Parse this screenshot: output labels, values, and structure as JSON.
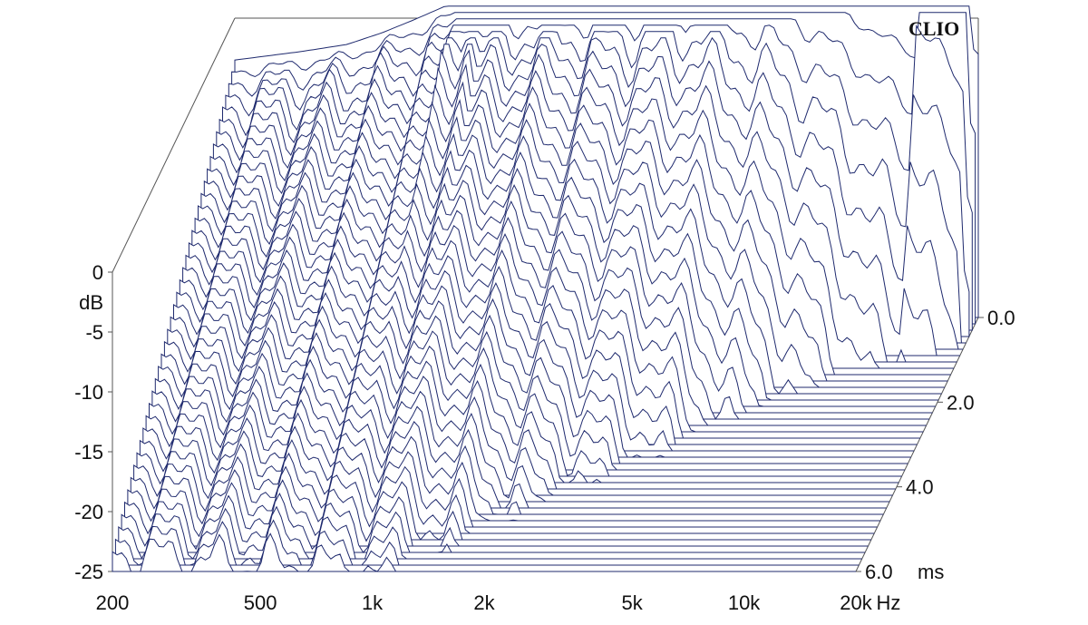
{
  "brand": "CLIO",
  "colors": {
    "trace": "#1f2a6e",
    "axis": "#555555",
    "text": "#111111",
    "background": "#ffffff"
  },
  "chart_data": {
    "type": "waterfall",
    "title": "",
    "xlabel": "Hz",
    "ylabel": "dB",
    "zlabel": "ms",
    "x_scale": "log",
    "xlim": [
      200,
      20000
    ],
    "ylim": [
      -25,
      0
    ],
    "zlim": [
      0,
      6
    ],
    "x_ticks": [
      200,
      500,
      1000,
      2000,
      5000,
      10000,
      20000
    ],
    "x_tick_labels": [
      "200",
      "500",
      "1k",
      "2k",
      "5k",
      "10k",
      "20k"
    ],
    "y_ticks": [
      0,
      -5,
      -10,
      -15,
      -20,
      -25
    ],
    "y_tick_labels": [
      "0",
      "-5",
      "-10",
      "-15",
      "-20",
      "-25"
    ],
    "z_ticks": [
      0,
      2,
      4,
      6
    ],
    "z_tick_labels": [
      "0.0",
      "2.0",
      "4.0",
      "6.0"
    ],
    "grid": false,
    "floor_db": -25,
    "initial_response": {
      "freq_hz": [
        200,
        300,
        400,
        500,
        600,
        700,
        800,
        900,
        1000,
        1200,
        1500,
        2000,
        2500,
        3000,
        3500,
        4000,
        5000,
        6000,
        7000,
        8000,
        10000,
        12000,
        15000,
        20000
      ],
      "level_db": [
        -3.5,
        -2.8,
        -2.2,
        -1.2,
        -0.2,
        0.7,
        1.5,
        2.2,
        3.0,
        3.5,
        4.0,
        4.2,
        4.8,
        5.5,
        6.0,
        6.5,
        5.8,
        5.5,
        5.0,
        4.2,
        3.0,
        2.0,
        1.0,
        -3.0
      ]
    },
    "slices": {
      "count": 41,
      "time_ms": [
        0.0,
        0.15,
        0.3,
        0.45,
        0.6,
        0.75,
        0.9,
        1.05,
        1.2,
        1.35,
        1.5,
        1.65,
        1.8,
        1.95,
        2.1,
        2.25,
        2.4,
        2.55,
        2.7,
        2.85,
        3.0,
        3.15,
        3.3,
        3.45,
        3.6,
        3.75,
        3.9,
        4.05,
        4.2,
        4.35,
        4.5,
        4.65,
        4.8,
        4.95,
        5.1,
        5.25,
        5.4,
        5.55,
        5.7,
        5.85,
        6.0
      ]
    }
  }
}
